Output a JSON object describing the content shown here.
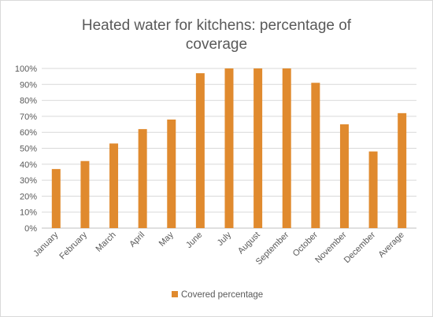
{
  "chart_data": {
    "type": "bar",
    "title_lines": [
      "Heated water for kitchens: percentage of",
      "coverage"
    ],
    "categories": [
      "January",
      "February",
      "March",
      "April",
      "May",
      "June",
      "July",
      "August",
      "September",
      "October",
      "November",
      "December",
      "Average"
    ],
    "series": [
      {
        "name": "Covered percentage",
        "color": "#E08A2E",
        "values": [
          37,
          42,
          53,
          62,
          68,
          97,
          100,
          100,
          100,
          91,
          65,
          48,
          72
        ]
      }
    ],
    "y_ticks": [
      "0%",
      "10%",
      "20%",
      "30%",
      "40%",
      "50%",
      "60%",
      "70%",
      "80%",
      "90%",
      "100%"
    ],
    "ylim": [
      0,
      100
    ],
    "y_unit": "%",
    "grid": true,
    "legend_position": "bottom"
  }
}
